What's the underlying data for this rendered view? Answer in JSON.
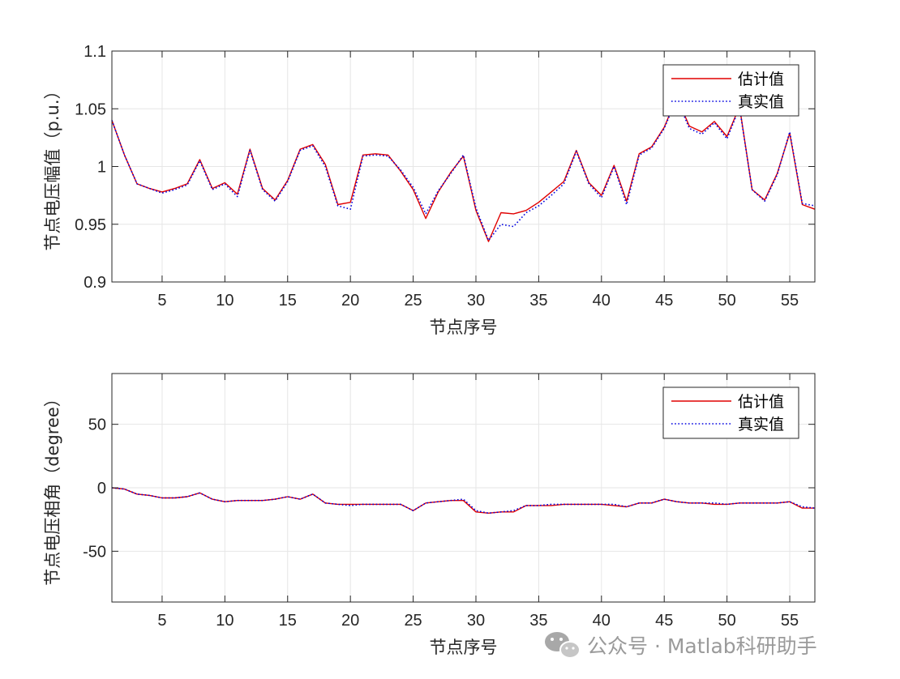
{
  "chart_data": [
    {
      "type": "line",
      "xlabel": "节点序号",
      "ylabel": "节点电压幅值（p.u.）",
      "xlim": [
        1,
        57
      ],
      "ylim": [
        0.9,
        1.1
      ],
      "xticks": [
        5,
        10,
        15,
        20,
        25,
        30,
        35,
        40,
        45,
        50,
        55
      ],
      "yticks": [
        0.9,
        0.95,
        1,
        1.05,
        1.1
      ],
      "ytick_labels": [
        "0.9",
        "0.95",
        "1",
        "1.05",
        "1.1"
      ],
      "grid": true,
      "legend_position": "top-right",
      "x": [
        1,
        2,
        3,
        4,
        5,
        6,
        7,
        8,
        9,
        10,
        11,
        12,
        13,
        14,
        15,
        16,
        17,
        18,
        19,
        20,
        21,
        22,
        23,
        24,
        25,
        26,
        27,
        28,
        29,
        30,
        31,
        32,
        33,
        34,
        35,
        36,
        37,
        38,
        39,
        40,
        41,
        42,
        43,
        44,
        45,
        46,
        47,
        48,
        49,
        50,
        51,
        52,
        53,
        54,
        55,
        56,
        57
      ],
      "series": [
        {
          "name": "估计值",
          "color": "#e00000",
          "style": "solid",
          "values": [
            1.04,
            1.01,
            0.985,
            0.981,
            0.978,
            0.981,
            0.985,
            1.006,
            0.981,
            0.986,
            0.976,
            1.015,
            0.981,
            0.971,
            0.988,
            1.015,
            1.019,
            1.002,
            0.967,
            0.969,
            1.01,
            1.011,
            1.01,
            0.996,
            0.98,
            0.955,
            0.978,
            0.995,
            1.009,
            0.962,
            0.935,
            0.96,
            0.959,
            0.962,
            0.969,
            0.978,
            0.987,
            1.014,
            0.986,
            0.975,
            1.001,
            0.97,
            1.011,
            1.017,
            1.034,
            1.06,
            1.035,
            1.03,
            1.039,
            1.026,
            1.052,
            0.98,
            0.971,
            0.994,
            1.029,
            0.967,
            0.963
          ]
        },
        {
          "name": "真实值",
          "color": "#0000e0",
          "style": "dotted",
          "values": [
            1.04,
            1.01,
            0.985,
            0.981,
            0.977,
            0.98,
            0.984,
            1.005,
            0.98,
            0.985,
            0.974,
            1.014,
            0.98,
            0.97,
            0.987,
            1.014,
            1.018,
            1.0,
            0.966,
            0.963,
            1.009,
            1.01,
            1.009,
            0.997,
            0.982,
            0.959,
            0.979,
            0.994,
            1.01,
            0.964,
            0.936,
            0.95,
            0.948,
            0.96,
            0.966,
            0.975,
            0.985,
            1.013,
            0.985,
            0.973,
            1.0,
            0.967,
            1.01,
            1.016,
            1.033,
            1.059,
            1.033,
            1.028,
            1.038,
            1.024,
            1.051,
            0.98,
            0.97,
            0.993,
            1.03,
            0.968,
            0.966
          ]
        }
      ]
    },
    {
      "type": "line",
      "xlabel": "节点序号",
      "ylabel": "节点电压相角（degree）",
      "xlim": [
        1,
        57
      ],
      "ylim": [
        -90,
        90
      ],
      "xticks": [
        5,
        10,
        15,
        20,
        25,
        30,
        35,
        40,
        45,
        50,
        55
      ],
      "yticks": [
        -50,
        0,
        50
      ],
      "ytick_labels": [
        "-50",
        "0",
        "50"
      ],
      "grid": true,
      "legend_position": "top-right",
      "x": [
        1,
        2,
        3,
        4,
        5,
        6,
        7,
        8,
        9,
        10,
        11,
        12,
        13,
        14,
        15,
        16,
        17,
        18,
        19,
        20,
        21,
        22,
        23,
        24,
        25,
        26,
        27,
        28,
        29,
        30,
        31,
        32,
        33,
        34,
        35,
        36,
        37,
        38,
        39,
        40,
        41,
        42,
        43,
        44,
        45,
        46,
        47,
        48,
        49,
        50,
        51,
        52,
        53,
        54,
        55,
        56,
        57
      ],
      "series": [
        {
          "name": "估计值",
          "color": "#e00000",
          "style": "solid",
          "values": [
            0,
            -1,
            -5,
            -6,
            -8,
            -8,
            -7,
            -4,
            -9,
            -11,
            -10,
            -10,
            -10,
            -9,
            -7,
            -9,
            -5,
            -12,
            -13,
            -13,
            -13,
            -13,
            -13,
            -13,
            -18,
            -12,
            -11,
            -10,
            -10,
            -19,
            -20,
            -19,
            -19,
            -14,
            -14,
            -14,
            -13,
            -13,
            -13,
            -13,
            -14,
            -15,
            -12,
            -12,
            -9,
            -11,
            -12,
            -12,
            -13,
            -13,
            -12,
            -12,
            -12,
            -12,
            -11,
            -16,
            -16
          ]
        },
        {
          "name": "真实值",
          "color": "#0000e0",
          "style": "dotted",
          "values": [
            0,
            -1,
            -5,
            -6,
            -8,
            -8,
            -7,
            -4,
            -9,
            -11,
            -10,
            -10,
            -10,
            -9,
            -7,
            -9,
            -5,
            -12,
            -13,
            -14,
            -13,
            -13,
            -13,
            -13,
            -18,
            -12,
            -11,
            -10,
            -9,
            -18,
            -20,
            -19,
            -18,
            -14,
            -14,
            -13,
            -13,
            -13,
            -13,
            -13,
            -13,
            -15,
            -12,
            -12,
            -9,
            -11,
            -12,
            -12,
            -12,
            -13,
            -12,
            -12,
            -12,
            -12,
            -11,
            -15,
            -16
          ]
        }
      ]
    }
  ],
  "watermark": {
    "icon": "wechat-icon",
    "text": "公众号 · Matlab科研助手"
  }
}
